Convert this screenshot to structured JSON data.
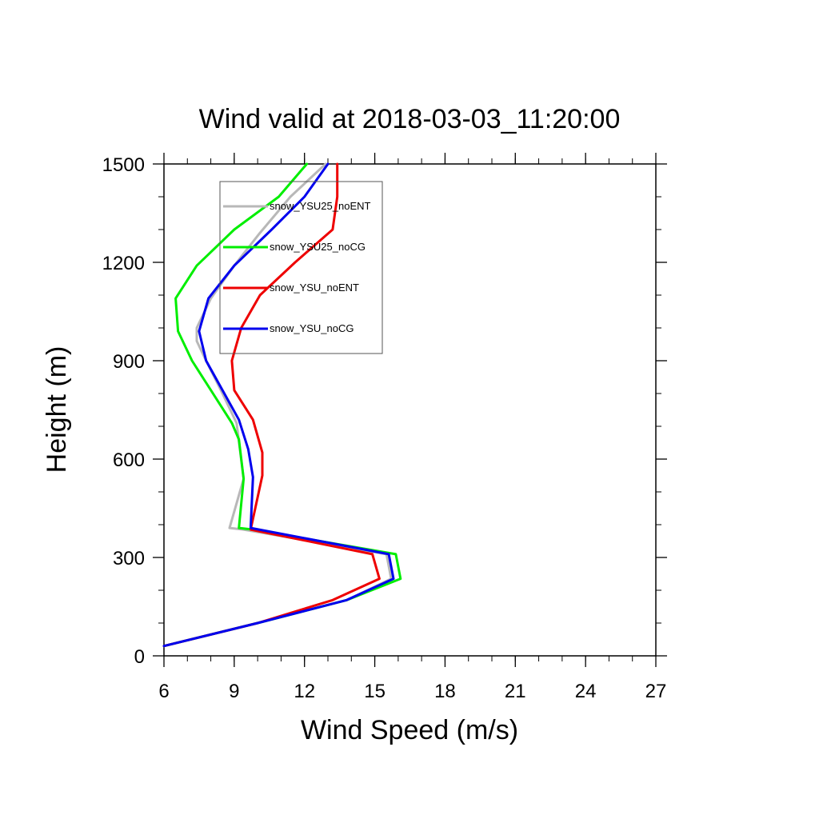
{
  "chart_data": {
    "type": "line",
    "title": "Wind valid at 2018-03-03_11:20:00",
    "xlabel": "Wind Speed (m/s)",
    "ylabel": "Height (m)",
    "xlim": [
      6,
      27
    ],
    "ylim": [
      0,
      1500
    ],
    "xticks": [
      "6",
      "9",
      "12",
      "15",
      "18",
      "21",
      "24",
      "27"
    ],
    "yticks": [
      "0",
      "300",
      "600",
      "900",
      "1200",
      "1500"
    ],
    "x_minor_step": 1,
    "y_minor_step": 100,
    "grid": false,
    "legend_position": "top-left",
    "series": [
      {
        "name": "snow_YSU25_noENT",
        "color": "#b8b8b8",
        "points": [
          [
            6.0,
            30
          ],
          [
            10.0,
            100
          ],
          [
            13.8,
            170
          ],
          [
            15.7,
            235
          ],
          [
            15.5,
            310
          ],
          [
            9.4,
            385
          ],
          [
            8.8,
            390
          ],
          [
            9.4,
            540
          ],
          [
            9.1,
            710
          ],
          [
            8.5,
            800
          ],
          [
            7.8,
            900
          ],
          [
            7.4,
            960
          ],
          [
            7.4,
            1000
          ],
          [
            8.0,
            1090
          ],
          [
            9.0,
            1190
          ],
          [
            10.1,
            1290
          ],
          [
            11.4,
            1400
          ],
          [
            12.9,
            1500
          ]
        ]
      },
      {
        "name": "snow_YSU25_noCG",
        "color": "#00ee00",
        "points": [
          [
            6.0,
            30
          ],
          [
            10.0,
            100
          ],
          [
            13.8,
            170
          ],
          [
            16.1,
            235
          ],
          [
            15.9,
            310
          ],
          [
            9.8,
            385
          ],
          [
            9.2,
            390
          ],
          [
            9.4,
            540
          ],
          [
            9.2,
            660
          ],
          [
            8.9,
            710
          ],
          [
            7.2,
            900
          ],
          [
            6.6,
            990
          ],
          [
            6.5,
            1090
          ],
          [
            7.4,
            1190
          ],
          [
            9.0,
            1300
          ],
          [
            10.9,
            1400
          ],
          [
            12.1,
            1500
          ]
        ]
      },
      {
        "name": "snow_YSU_noENT",
        "color": "#ee0000",
        "points": [
          [
            6.0,
            30
          ],
          [
            10.0,
            100
          ],
          [
            13.2,
            170
          ],
          [
            15.2,
            235
          ],
          [
            14.9,
            310
          ],
          [
            9.7,
            385
          ],
          [
            10.2,
            550
          ],
          [
            10.2,
            620
          ],
          [
            9.8,
            720
          ],
          [
            9.0,
            810
          ],
          [
            8.9,
            900
          ],
          [
            9.3,
            1000
          ],
          [
            10.1,
            1100
          ],
          [
            11.6,
            1200
          ],
          [
            13.2,
            1300
          ],
          [
            13.4,
            1400
          ],
          [
            13.4,
            1500
          ]
        ]
      },
      {
        "name": "snow_YSU_noCG",
        "color": "#0000ee",
        "points": [
          [
            6.0,
            30
          ],
          [
            10.0,
            100
          ],
          [
            13.8,
            170
          ],
          [
            15.8,
            235
          ],
          [
            15.6,
            310
          ],
          [
            9.7,
            390
          ],
          [
            9.8,
            545
          ],
          [
            9.6,
            630
          ],
          [
            9.2,
            720
          ],
          [
            7.8,
            900
          ],
          [
            7.5,
            990
          ],
          [
            7.9,
            1090
          ],
          [
            9.0,
            1190
          ],
          [
            10.6,
            1300
          ],
          [
            12.0,
            1400
          ],
          [
            13.0,
            1500
          ]
        ]
      }
    ]
  }
}
